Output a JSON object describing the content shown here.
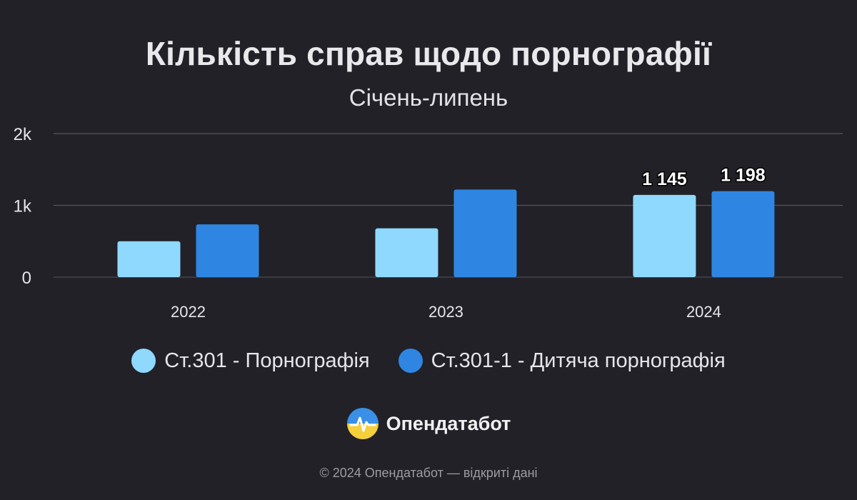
{
  "colors": {
    "background": "#212127",
    "series1": "#8fd8fe",
    "series2": "#2e86e2",
    "grid": "#55555c",
    "label": "#e6e6ea"
  },
  "chart_data": {
    "type": "bar",
    "title": "Кількість справ щодо порнографії",
    "subtitle": "Січень-липень",
    "categories": [
      "2022",
      "2023",
      "2024"
    ],
    "series": [
      {
        "name": "Ст.301 - Порнографія",
        "values": [
          500,
          680,
          1145
        ]
      },
      {
        "name": "Ст.301-1 - Дитяча порнографія",
        "values": [
          735,
          1220,
          1198
        ]
      }
    ],
    "data_labels": [
      {
        "series": 0,
        "category": 2,
        "text": "1 145"
      },
      {
        "series": 1,
        "category": 2,
        "text": "1 198"
      }
    ],
    "yticks": [
      {
        "value": 0,
        "label": "0"
      },
      {
        "value": 1000,
        "label": "1k"
      },
      {
        "value": 2000,
        "label": "2k"
      }
    ],
    "ylim": [
      0,
      2000
    ],
    "grid": true,
    "legend": "bottom"
  },
  "brand": {
    "logo_icon": "opendatabot-logo-icon",
    "name": "Опендатабот"
  },
  "footer": {
    "text": "© 2024 Опендатабот — відкриті дані"
  }
}
